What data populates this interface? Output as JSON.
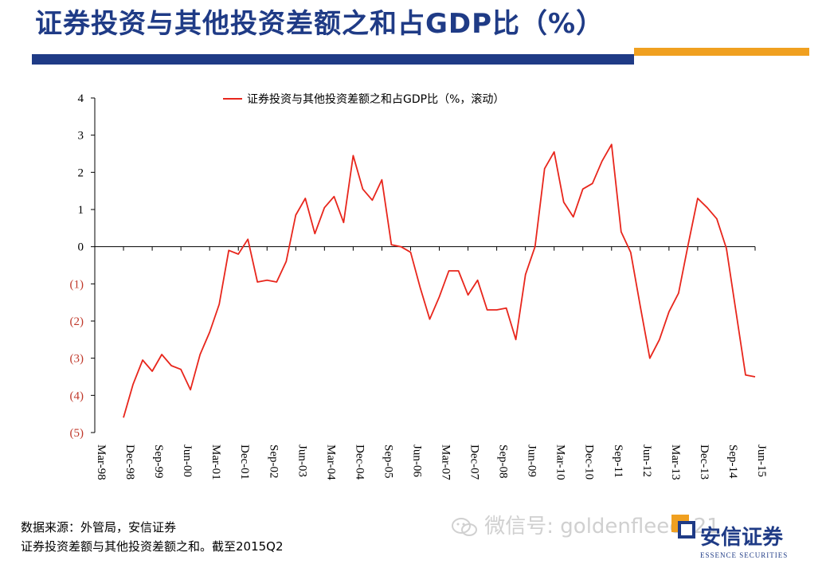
{
  "title": "证券投资与其他投资差额之和占GDP比（%）",
  "source_line1": "数据来源：外管局，安信证券",
  "source_line2": "证券投资差额与其他投资差额之和。截至2015Q2",
  "watermark": "微信号: goldenfleece21",
  "logo": {
    "name": "安信证券",
    "subtitle": "ESSENCE SECURITIES"
  },
  "colors": {
    "line": "#e8261c",
    "negative_label": "#c0392b",
    "brand_blue": "#1f3b86",
    "brand_orange": "#f0a020"
  },
  "chart_data": {
    "type": "line",
    "legend": "证券投资与其他投资差额之和占GDP比（%，滚动）",
    "legend_position": "top-center",
    "grid": false,
    "ylim": [
      -5,
      4
    ],
    "y_ticks": [
      {
        "value": 4,
        "label": "4"
      },
      {
        "value": 3,
        "label": "3"
      },
      {
        "value": 2,
        "label": "2"
      },
      {
        "value": 1,
        "label": "1"
      },
      {
        "value": 0,
        "label": "0"
      },
      {
        "value": -1,
        "label": "(1)"
      },
      {
        "value": -2,
        "label": "(2)"
      },
      {
        "value": -3,
        "label": "(3)"
      },
      {
        "value": -4,
        "label": "(4)"
      },
      {
        "value": -5,
        "label": "(5)"
      }
    ],
    "x_tick_labels": [
      "Mar-98",
      "Dec-98",
      "Sep-99",
      "Jun-00",
      "Mar-01",
      "Dec-01",
      "Sep-02",
      "Jun-03",
      "Mar-04",
      "Dec-04",
      "Sep-05",
      "Jun-06",
      "Mar-07",
      "Dec-07",
      "Sep-08",
      "Jun-09",
      "Mar-10",
      "Dec-10",
      "Sep-11",
      "Jun-12",
      "Mar-13",
      "Dec-13",
      "Sep-14",
      "Jun-15"
    ],
    "x_start": "1998Q1",
    "x_end": "2015Q2",
    "series": [
      {
        "x": [
          "1998Q4",
          "1999Q1",
          "1999Q2",
          "1999Q3",
          "1999Q4",
          "2000Q1",
          "2000Q2",
          "2000Q3",
          "2000Q4",
          "2001Q1",
          "2001Q2",
          "2001Q3",
          "2001Q4",
          "2002Q1",
          "2002Q2",
          "2002Q3",
          "2002Q4",
          "2003Q1",
          "2003Q2",
          "2003Q3",
          "2003Q4",
          "2004Q1",
          "2004Q2",
          "2004Q3",
          "2004Q4",
          "2005Q1",
          "2005Q2",
          "2005Q3",
          "2005Q4",
          "2006Q1",
          "2006Q2",
          "2006Q3",
          "2006Q4",
          "2007Q1",
          "2007Q2",
          "2007Q3",
          "2007Q4",
          "2008Q1",
          "2008Q2",
          "2008Q3",
          "2008Q4",
          "2009Q1",
          "2009Q2",
          "2009Q3",
          "2009Q4",
          "2010Q1",
          "2010Q2",
          "2010Q3",
          "2010Q4",
          "2011Q1",
          "2011Q2",
          "2011Q3",
          "2011Q4",
          "2012Q1",
          "2012Q2",
          "2012Q3",
          "2012Q4",
          "2013Q1",
          "2013Q2",
          "2013Q3",
          "2013Q4",
          "2014Q1",
          "2014Q2",
          "2014Q3",
          "2014Q4",
          "2015Q1",
          "2015Q2"
        ],
        "y": [
          -4.6,
          -3.7,
          -3.05,
          -3.35,
          -2.9,
          -3.2,
          -3.3,
          -3.85,
          -2.9,
          -2.3,
          -1.55,
          -0.1,
          -0.2,
          0.2,
          -0.95,
          -0.9,
          -0.95,
          -0.4,
          0.85,
          1.3,
          0.35,
          1.05,
          1.35,
          0.65,
          2.45,
          1.55,
          1.25,
          1.8,
          0.05,
          0.0,
          -0.15,
          -1.1,
          -1.95,
          -1.35,
          -0.65,
          -0.65,
          -1.3,
          -0.9,
          -1.7,
          -1.7,
          -1.65,
          -2.5,
          -0.75,
          0.0,
          2.1,
          2.55,
          1.2,
          0.8,
          1.55,
          1.7,
          2.3,
          2.75,
          0.4,
          -0.15,
          -1.6,
          -3.0,
          -2.5,
          -1.75,
          -1.25,
          0.05,
          1.3,
          1.05,
          0.75,
          -0.05,
          -1.75,
          -3.45,
          -3.5
        ]
      }
    ]
  }
}
